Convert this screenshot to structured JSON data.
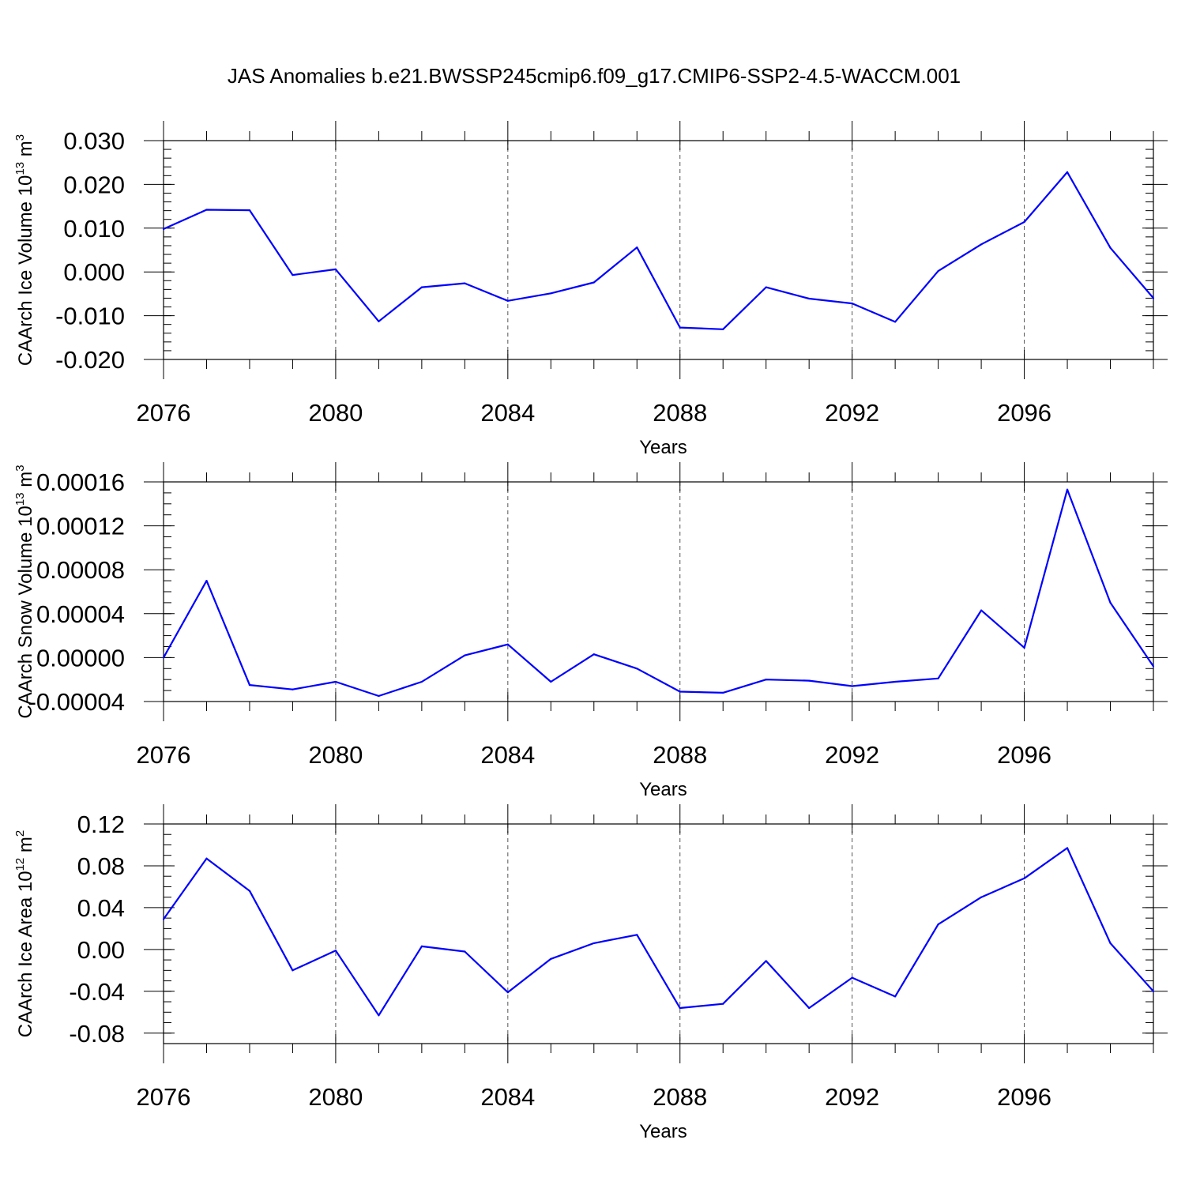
{
  "figure": {
    "title": "JAS Anomalies b.e21.BWSSP245cmip6.f09_g17.CMIP6-SSP2-4.5-WACCM.001",
    "line_color": "#0000ff"
  },
  "chart_data": [
    {
      "type": "line",
      "title": "JAS Anomalies b.e21.BWSSP245cmip6.f09_g17.CMIP6-SSP2-4.5-WACCM.001",
      "xlabel": "Years",
      "ylabel": "CAArch Ice Volume 10",
      "ylabel_exp": "13",
      "ylabel_unit": " m",
      "ylabel_unit_exp": "3",
      "xlim": [
        2076,
        2099
      ],
      "ylim": [
        -0.02,
        0.03
      ],
      "y_ticks": [
        "0.030",
        "0.020",
        "0.010",
        "0.000",
        "-0.010",
        "-0.020"
      ],
      "y_tick_values": [
        0.03,
        0.02,
        0.01,
        0.0,
        -0.01,
        -0.02
      ],
      "y_minor_step": 0.002,
      "x": [
        2076,
        2077,
        2078,
        2079,
        2080,
        2081,
        2082,
        2083,
        2084,
        2085,
        2086,
        2087,
        2088,
        2089,
        2090,
        2091,
        2092,
        2093,
        2094,
        2095,
        2096,
        2097,
        2098,
        2099
      ],
      "values": [
        0.0098,
        0.0142,
        0.0141,
        -0.0007,
        0.0006,
        -0.0113,
        -0.0035,
        -0.0026,
        -0.0066,
        -0.0049,
        -0.0024,
        0.0056,
        -0.0127,
        -0.0131,
        -0.0035,
        -0.0061,
        -0.0072,
        -0.0114,
        0.0002,
        0.0063,
        0.0114,
        0.0228,
        0.0055,
        -0.006
      ]
    },
    {
      "type": "line",
      "xlabel": "Years",
      "ylabel": "CAArch Snow Volume 10",
      "ylabel_exp": "13",
      "ylabel_unit": " m",
      "ylabel_unit_exp": "3",
      "xlim": [
        2076,
        2099
      ],
      "ylim": [
        -4e-05,
        0.00016
      ],
      "y_ticks": [
        "0.00016",
        "0.00012",
        "0.00008",
        "0.00004",
        "0.00000",
        "-0.00004"
      ],
      "y_tick_values": [
        0.00016,
        0.00012,
        8e-05,
        4e-05,
        0.0,
        -4e-05
      ],
      "y_minor_step": 1e-05,
      "x": [
        2076,
        2077,
        2078,
        2079,
        2080,
        2081,
        2082,
        2083,
        2084,
        2085,
        2086,
        2087,
        2088,
        2089,
        2090,
        2091,
        2092,
        2093,
        2094,
        2095,
        2096,
        2097,
        2098,
        2099
      ],
      "values": [
        0.0,
        7e-05,
        -2.5e-05,
        -2.9e-05,
        -2.2e-05,
        -3.5e-05,
        -2.2e-05,
        2e-06,
        1.2e-05,
        -2.2e-05,
        3e-06,
        -1e-05,
        -3.1e-05,
        -3.2e-05,
        -2e-05,
        -2.1e-05,
        -2.6e-05,
        -2.2e-05,
        -1.9e-05,
        4.3e-05,
        9e-06,
        0.000153,
        5e-05,
        -8e-06
      ]
    },
    {
      "type": "line",
      "xlabel": "Years",
      "ylabel": "CAArch Ice Area 10",
      "ylabel_exp": "12",
      "ylabel_unit": " m",
      "ylabel_unit_exp": "2",
      "xlim": [
        2076,
        2099
      ],
      "ylim": [
        -0.09,
        0.12
      ],
      "y_ticks": [
        "0.12",
        "0.08",
        "0.04",
        "0.00",
        "-0.04",
        "-0.08"
      ],
      "y_tick_values": [
        0.12,
        0.08,
        0.04,
        0.0,
        -0.04,
        -0.08
      ],
      "y_minor_step": 0.01,
      "x": [
        2076,
        2077,
        2078,
        2079,
        2080,
        2081,
        2082,
        2083,
        2084,
        2085,
        2086,
        2087,
        2088,
        2089,
        2090,
        2091,
        2092,
        2093,
        2094,
        2095,
        2096,
        2097,
        2098,
        2099
      ],
      "values": [
        0.029,
        0.087,
        0.056,
        -0.02,
        -0.001,
        -0.063,
        0.003,
        -0.002,
        -0.041,
        -0.009,
        0.006,
        0.014,
        -0.056,
        -0.052,
        -0.011,
        -0.056,
        -0.027,
        -0.045,
        0.024,
        0.05,
        0.068,
        0.097,
        0.006,
        -0.04
      ]
    }
  ],
  "x_ticks": [
    "2076",
    "2080",
    "2084",
    "2088",
    "2092",
    "2096"
  ],
  "x_tick_values": [
    2076,
    2080,
    2084,
    2088,
    2092,
    2096
  ]
}
